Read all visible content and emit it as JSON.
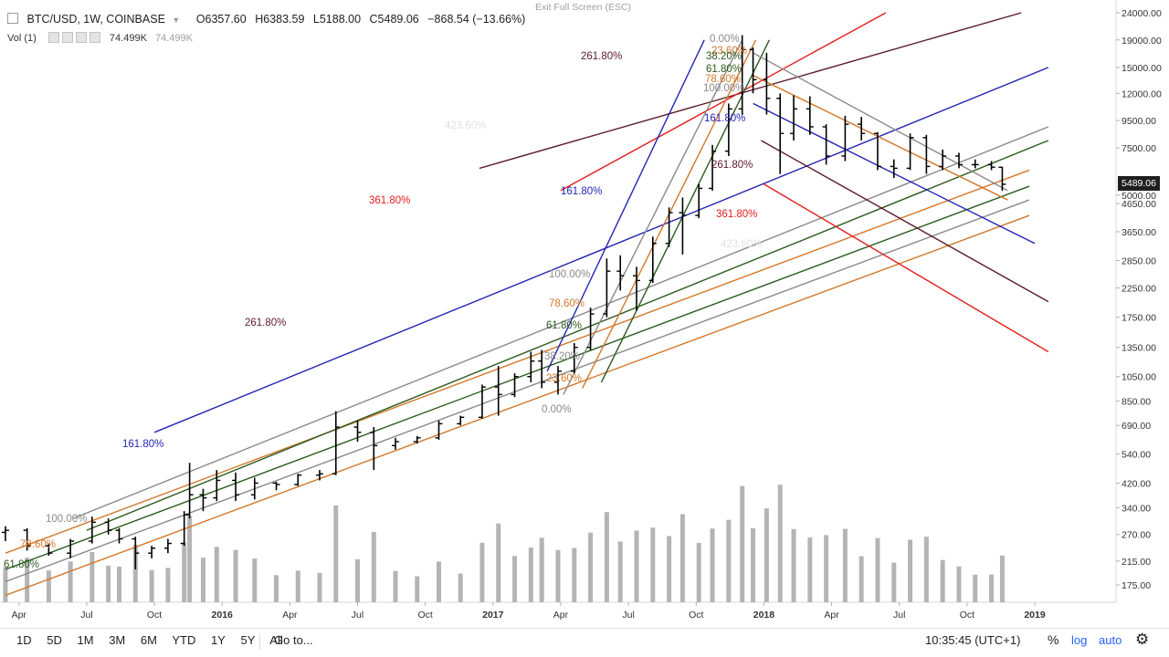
{
  "header": {
    "symbol": "BTC/USD, 1W, COINBASE",
    "open": "O6357.60",
    "high": "H6383.59",
    "low": "L5188.00",
    "close": "C5489.06",
    "change": "−868.54 (−13.66%)",
    "vol_label": "Vol (1)",
    "vol_value": "74.499K",
    "vol_value2": "74.499K",
    "exit_fullscreen": "Exit Full Screen (ESC)",
    "last_price": "5489.06"
  },
  "toolbar": {
    "timeframes": [
      "1D",
      "5D",
      "1M",
      "3M",
      "6M",
      "YTD",
      "1Y",
      "5Y",
      "All"
    ],
    "goto": "Go to...",
    "clock": "10:35:45 (UTC+1)",
    "percent": "%",
    "log": "log",
    "auto": "auto"
  },
  "colors": {
    "candle": "#000000",
    "volume": "#b4b4b4",
    "fib_orange": "#d2782a",
    "fib_green": "#2b5a1e",
    "fib_gray": "#8a8a8a",
    "fib_blue": "#2424b4",
    "fib_maroon": "#5a1a28",
    "fib_red": "#e41c1c"
  },
  "chart_data": {
    "type": "ohlc",
    "scale": "log",
    "ylim": [
      150,
      24000
    ],
    "y_ticks": [
      24000,
      19000,
      15000,
      12000,
      9500,
      7500,
      5000,
      4650,
      3650,
      2850,
      2250,
      1750,
      1350,
      1050,
      850,
      690,
      540,
      420,
      340,
      270,
      215,
      175
    ],
    "x_ticks": [
      "Apr",
      "Jul",
      "Oct",
      "2016",
      "Apr",
      "Jul",
      "Oct",
      "2017",
      "Apr",
      "Jul",
      "Oct",
      "2018",
      "Apr",
      "Jul",
      "Oct",
      "2019"
    ],
    "fib_labels": [
      {
        "text": "261.80%",
        "color": "#5a1a28"
      },
      {
        "text": "361.80%",
        "color": "#e41c1c"
      },
      {
        "text": "161.80%",
        "color": "#2424b4"
      },
      {
        "text": "261.80%",
        "color": "#5a1a28"
      },
      {
        "text": "161.80%",
        "color": "#2424b4"
      },
      {
        "text": "100.00%",
        "color": "#8a8a8a"
      },
      {
        "text": "78.60%",
        "color": "#d2782a"
      },
      {
        "text": "61.80%",
        "color": "#2b5a1e"
      },
      {
        "text": "38.20%",
        "color": "#8a8a8a"
      },
      {
        "text": "23.60%",
        "color": "#d2782a"
      },
      {
        "text": "0.00%",
        "color": "#8a8a8a"
      },
      {
        "text": "100.00%",
        "color": "#8a8a8a"
      },
      {
        "text": "78.60%",
        "color": "#d2782a"
      },
      {
        "text": "61.80%",
        "color": "#2b5a1e"
      },
      {
        "text": "0.00%",
        "color": "#8a8a8a"
      },
      {
        "text": "23.60%",
        "color": "#d2782a"
      },
      {
        "text": "38.20%",
        "color": "#2b5a1e"
      },
      {
        "text": "61.80%",
        "color": "#2b5a1e"
      },
      {
        "text": "78.60%",
        "color": "#d2782a"
      },
      {
        "text": "100.00%",
        "color": "#8a8a8a"
      },
      {
        "text": "161.80%",
        "color": "#2424b4"
      },
      {
        "text": "261.80%",
        "color": "#5a1a28"
      },
      {
        "text": "361.80%",
        "color": "#e41c1c"
      },
      {
        "text": "423.60%",
        "color": "#e0e0e0"
      },
      {
        "text": "423.60%",
        "color": "#e0e0e0"
      }
    ],
    "series": [
      {
        "name": "BTC/USD",
        "candles": [
          [
            2015.2,
            275,
            290,
            255,
            280
          ],
          [
            2015.28,
            280,
            285,
            235,
            245
          ],
          [
            2015.36,
            245,
            250,
            225,
            230
          ],
          [
            2015.44,
            230,
            260,
            220,
            255
          ],
          [
            2015.52,
            255,
            315,
            250,
            300
          ],
          [
            2015.58,
            300,
            310,
            270,
            280
          ],
          [
            2015.62,
            280,
            285,
            250,
            260
          ],
          [
            2015.68,
            260,
            265,
            200,
            230
          ],
          [
            2015.74,
            230,
            245,
            220,
            240
          ],
          [
            2015.8,
            240,
            260,
            230,
            250
          ],
          [
            2015.86,
            250,
            330,
            245,
            320
          ],
          [
            2015.88,
            320,
            500,
            310,
            380
          ],
          [
            2015.93,
            380,
            400,
            330,
            370
          ],
          [
            2015.98,
            370,
            470,
            360,
            430
          ],
          [
            2016.05,
            430,
            460,
            360,
            380
          ],
          [
            2016.12,
            380,
            440,
            365,
            420
          ],
          [
            2016.2,
            420,
            425,
            395,
            415
          ],
          [
            2016.28,
            415,
            455,
            410,
            450
          ],
          [
            2016.36,
            450,
            470,
            430,
            455
          ],
          [
            2016.42,
            455,
            780,
            450,
            680
          ],
          [
            2016.5,
            680,
            720,
            600,
            650
          ],
          [
            2016.56,
            650,
            680,
            470,
            580
          ],
          [
            2016.64,
            580,
            620,
            560,
            600
          ],
          [
            2016.72,
            600,
            630,
            590,
            620
          ],
          [
            2016.8,
            620,
            720,
            610,
            700
          ],
          [
            2016.88,
            700,
            750,
            690,
            740
          ],
          [
            2016.96,
            740,
            980,
            730,
            960
          ],
          [
            2017.02,
            960,
            1150,
            750,
            900
          ],
          [
            2017.08,
            900,
            1080,
            880,
            1050
          ],
          [
            2017.14,
            1050,
            1300,
            1000,
            1200
          ],
          [
            2017.18,
            1200,
            1320,
            950,
            1000
          ],
          [
            2017.24,
            1000,
            1150,
            900,
            1100
          ],
          [
            2017.3,
            1100,
            1400,
            1080,
            1350
          ],
          [
            2017.36,
            1350,
            1900,
            1320,
            1800
          ],
          [
            2017.42,
            1800,
            2900,
            1750,
            2600
          ],
          [
            2017.47,
            2600,
            2980,
            2200,
            2500
          ],
          [
            2017.53,
            2500,
            2700,
            1850,
            2400
          ],
          [
            2017.59,
            2400,
            3500,
            2350,
            3300
          ],
          [
            2017.65,
            3300,
            4500,
            3200,
            4300
          ],
          [
            2017.7,
            4300,
            4900,
            3000,
            4200
          ],
          [
            2017.76,
            4200,
            5500,
            4100,
            5300
          ],
          [
            2017.81,
            5300,
            7700,
            5200,
            7300
          ],
          [
            2017.87,
            7300,
            11000,
            7000,
            10500
          ],
          [
            2017.92,
            10500,
            19800,
            10000,
            17500
          ],
          [
            2017.96,
            17500,
            17800,
            12000,
            13500
          ],
          [
            2018.01,
            13500,
            17000,
            10000,
            11500
          ],
          [
            2018.06,
            11500,
            12000,
            6000,
            8500
          ],
          [
            2018.11,
            8500,
            11800,
            8000,
            10500
          ],
          [
            2018.17,
            10500,
            11700,
            8400,
            9000
          ],
          [
            2018.23,
            9000,
            9200,
            6500,
            7000
          ],
          [
            2018.3,
            7000,
            9900,
            6700,
            9200
          ],
          [
            2018.36,
            9200,
            9800,
            8000,
            8500
          ],
          [
            2018.42,
            8500,
            8600,
            6200,
            6400
          ],
          [
            2018.48,
            6400,
            6800,
            5800,
            6300
          ],
          [
            2018.54,
            6300,
            8500,
            6200,
            8200
          ],
          [
            2018.6,
            8200,
            8400,
            6000,
            6400
          ],
          [
            2018.66,
            6400,
            7400,
            6200,
            7000
          ],
          [
            2018.72,
            7000,
            7200,
            6300,
            6500
          ],
          [
            2018.78,
            6500,
            6800,
            6300,
            6500
          ],
          [
            2018.84,
            6500,
            6700,
            6200,
            6360
          ],
          [
            2018.88,
            6357.6,
            6383.59,
            5188.0,
            5489.06
          ]
        ]
      }
    ]
  }
}
